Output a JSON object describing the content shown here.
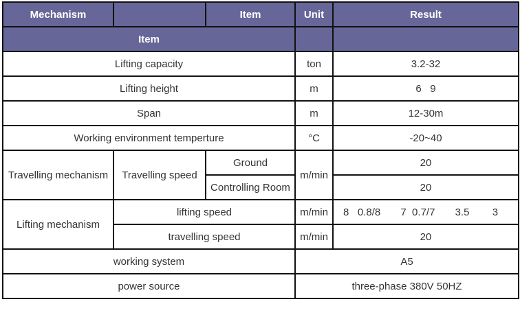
{
  "header": {
    "mechanism": "Mechanism",
    "item": "Item",
    "unit": "Unit",
    "result": "Result",
    "item2": "Item"
  },
  "rows": {
    "capacity": {
      "label": "Lifting capacity",
      "unit": "ton",
      "value": "3.2-32"
    },
    "height": {
      "label": "Lifting height",
      "unit": "m",
      "value": "6   9"
    },
    "span": {
      "label": "Span",
      "unit": "m",
      "value": "12-30m"
    },
    "temp": {
      "label": "Working environment temperture",
      "unit": "°C",
      "value": "-20~40"
    },
    "travel": {
      "mechanism": "Travelling mechanism",
      "item": "Travelling speed",
      "sub1": "Ground",
      "sub2": "Controlling Room",
      "unit": "m/min",
      "value1": "20",
      "value2": "20"
    },
    "lift": {
      "mechanism": "Lifting mechanism",
      "item1": "lifting speed",
      "unit1": "m/min",
      "value1": "8   0.8/8       7  0.7/7       3.5        3",
      "item2": "travelling speed",
      "unit2": "m/min",
      "value2": "20"
    },
    "system": {
      "label": "working system",
      "value": "A5"
    },
    "power": {
      "label": "power source",
      "value": "three-phase 380V 50HZ"
    }
  },
  "colors": {
    "header_bg": "#666699"
  }
}
